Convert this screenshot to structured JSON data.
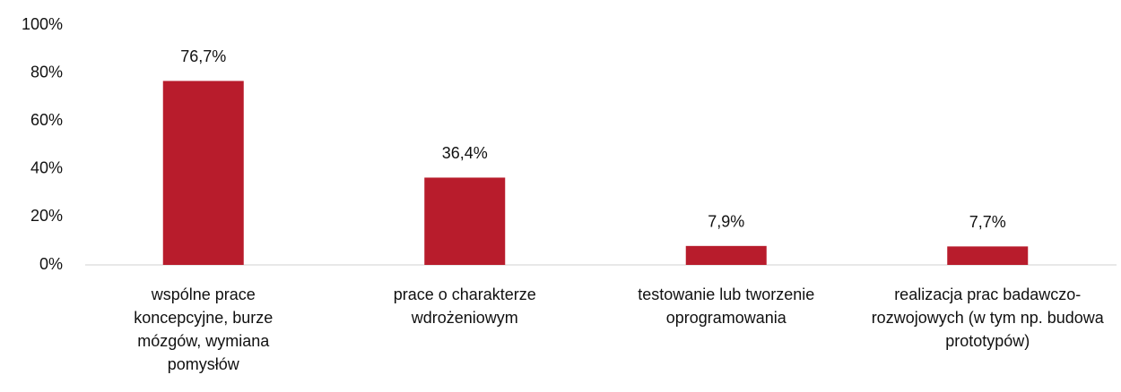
{
  "chart_data": {
    "type": "bar",
    "categories": [
      "wspólne prace koncepcyjne, burze mózgów, wymiana pomysłów",
      "prace o charakterze wdrożeniowym",
      "testowanie lub tworzenie oprogramowania",
      "realizacja prac badawczo-rozwojowych (w tym np. budowa prototypów)"
    ],
    "values": [
      76.7,
      36.4,
      7.9,
      7.7
    ],
    "value_labels": [
      "76,7%",
      "36,4%",
      "7,9%",
      "7,7%"
    ],
    "color": "#b81c2c",
    "ylim": [
      0,
      100
    ],
    "yticks": [
      {
        "value": 0,
        "label": "0%"
      },
      {
        "value": 20,
        "label": "20%"
      },
      {
        "value": 40,
        "label": "40%"
      },
      {
        "value": 60,
        "label": "60%"
      },
      {
        "value": 80,
        "label": "80%"
      },
      {
        "value": 100,
        "label": "100%"
      }
    ],
    "grid": false
  }
}
